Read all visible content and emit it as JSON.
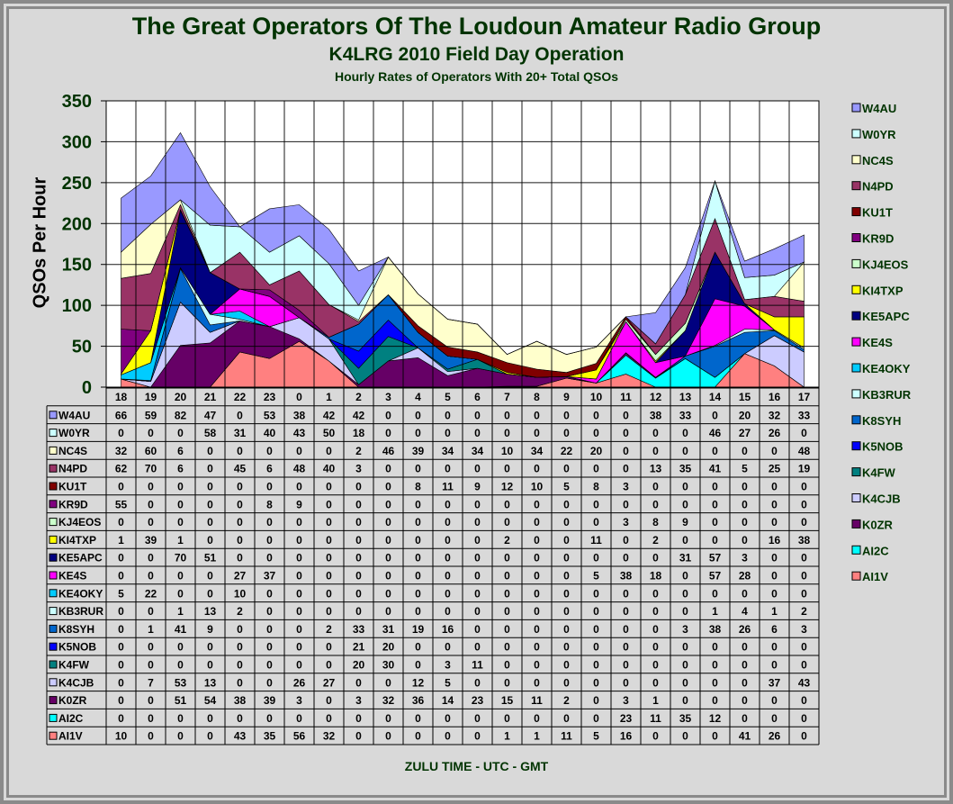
{
  "chart_data": {
    "type": "area",
    "stacked": true,
    "title": "The Great Operators Of The Loudoun Amateur Radio Group",
    "subtitle": "K4LRG 2010 Field Day Operation",
    "subtitle2": "Hourly Rates of Operators With 20+ Total QSOs",
    "xlabel": "ZULU TIME  -  UTC  -  GMT",
    "ylabel": "QSOs Per Hour",
    "ylim": [
      0,
      350
    ],
    "yticks": [
      0,
      50,
      100,
      150,
      200,
      250,
      300,
      350
    ],
    "grid": true,
    "legend": "right",
    "categories": [
      "18",
      "19",
      "20",
      "21",
      "22",
      "23",
      "0",
      "1",
      "2",
      "3",
      "4",
      "5",
      "6",
      "7",
      "8",
      "9",
      "10",
      "11",
      "12",
      "13",
      "14",
      "15",
      "16",
      "17"
    ],
    "series": [
      {
        "name": "W4AU",
        "color": "#9999FF",
        "values": [
          66,
          59,
          82,
          47,
          0,
          53,
          38,
          42,
          42,
          0,
          0,
          0,
          0,
          0,
          0,
          0,
          0,
          0,
          38,
          33,
          0,
          20,
          32,
          33
        ]
      },
      {
        "name": "W0YR",
        "color": "#CCFFFF",
        "values": [
          0,
          0,
          0,
          58,
          31,
          40,
          43,
          50,
          18,
          0,
          0,
          0,
          0,
          0,
          0,
          0,
          0,
          0,
          0,
          0,
          46,
          27,
          26,
          0
        ]
      },
      {
        "name": "NC4S",
        "color": "#FFFFCC",
        "values": [
          32,
          60,
          6,
          0,
          0,
          0,
          0,
          0,
          2,
          46,
          39,
          34,
          34,
          10,
          34,
          22,
          20,
          0,
          0,
          0,
          0,
          0,
          0,
          48
        ]
      },
      {
        "name": "N4PD",
        "color": "#993366",
        "values": [
          62,
          70,
          6,
          0,
          45,
          6,
          48,
          40,
          3,
          0,
          0,
          0,
          0,
          0,
          0,
          0,
          0,
          0,
          13,
          35,
          41,
          5,
          25,
          19
        ]
      },
      {
        "name": "KU1T",
        "color": "#800000",
        "values": [
          0,
          0,
          0,
          0,
          0,
          0,
          0,
          0,
          0,
          0,
          8,
          11,
          9,
          12,
          10,
          5,
          8,
          3,
          0,
          0,
          0,
          0,
          0,
          0
        ]
      },
      {
        "name": "KR9D",
        "color": "#800080",
        "values": [
          55,
          0,
          0,
          0,
          0,
          8,
          9,
          0,
          0,
          0,
          0,
          0,
          0,
          0,
          0,
          0,
          0,
          0,
          0,
          0,
          0,
          0,
          0,
          0
        ]
      },
      {
        "name": "KJ4EOS",
        "color": "#CCFFCC",
        "values": [
          0,
          0,
          0,
          0,
          0,
          0,
          0,
          0,
          0,
          0,
          0,
          0,
          0,
          0,
          0,
          0,
          0,
          3,
          8,
          9,
          0,
          0,
          0,
          0
        ]
      },
      {
        "name": "KI4TXP",
        "color": "#FFFF00",
        "values": [
          1,
          39,
          1,
          0,
          0,
          0,
          0,
          0,
          0,
          0,
          0,
          0,
          0,
          2,
          0,
          0,
          11,
          0,
          2,
          0,
          0,
          0,
          16,
          38
        ]
      },
      {
        "name": "KE5APC",
        "color": "#000080",
        "values": [
          0,
          0,
          70,
          51,
          0,
          0,
          0,
          0,
          0,
          0,
          0,
          0,
          0,
          0,
          0,
          0,
          0,
          0,
          0,
          31,
          57,
          3,
          0,
          0
        ]
      },
      {
        "name": "KE4S",
        "color": "#FF00FF",
        "values": [
          0,
          0,
          0,
          0,
          27,
          37,
          0,
          0,
          0,
          0,
          0,
          0,
          0,
          0,
          0,
          0,
          5,
          38,
          18,
          0,
          57,
          28,
          0,
          0
        ]
      },
      {
        "name": "KE4OKY",
        "color": "#00CCFF",
        "values": [
          5,
          22,
          0,
          0,
          10,
          0,
          0,
          0,
          0,
          0,
          0,
          0,
          0,
          0,
          0,
          0,
          0,
          0,
          0,
          0,
          0,
          0,
          0,
          0
        ]
      },
      {
        "name": "KB3RUR",
        "color": "#CCFFFF",
        "values": [
          0,
          0,
          1,
          13,
          2,
          0,
          0,
          0,
          0,
          0,
          0,
          0,
          0,
          0,
          0,
          0,
          0,
          0,
          0,
          0,
          1,
          4,
          1,
          2
        ]
      },
      {
        "name": "K8SYH",
        "color": "#0066CC",
        "values": [
          0,
          1,
          41,
          9,
          0,
          0,
          0,
          2,
          33,
          31,
          19,
          16,
          0,
          0,
          0,
          0,
          0,
          0,
          0,
          3,
          38,
          26,
          6,
          3
        ]
      },
      {
        "name": "K5NOB",
        "color": "#0000FF",
        "values": [
          0,
          0,
          0,
          0,
          0,
          0,
          0,
          0,
          21,
          20,
          0,
          0,
          0,
          0,
          0,
          0,
          0,
          0,
          0,
          0,
          0,
          0,
          0,
          0
        ]
      },
      {
        "name": "K4FW",
        "color": "#008080",
        "values": [
          0,
          0,
          0,
          0,
          0,
          0,
          0,
          0,
          20,
          30,
          0,
          3,
          11,
          0,
          0,
          0,
          0,
          0,
          0,
          0,
          0,
          0,
          0,
          0
        ]
      },
      {
        "name": "K4CJB",
        "color": "#CCCCFF",
        "values": [
          0,
          7,
          53,
          13,
          0,
          0,
          26,
          27,
          0,
          0,
          12,
          5,
          0,
          0,
          0,
          0,
          0,
          0,
          0,
          0,
          0,
          0,
          37,
          43
        ]
      },
      {
        "name": "K0ZR",
        "color": "#660066",
        "values": [
          0,
          0,
          51,
          54,
          38,
          39,
          3,
          0,
          3,
          32,
          36,
          14,
          23,
          15,
          11,
          2,
          0,
          3,
          1,
          0,
          0,
          0,
          0,
          0
        ]
      },
      {
        "name": "AI2C",
        "color": "#00FFFF",
        "values": [
          0,
          0,
          0,
          0,
          0,
          0,
          0,
          0,
          0,
          0,
          0,
          0,
          0,
          0,
          0,
          0,
          0,
          23,
          11,
          35,
          12,
          0,
          0,
          0
        ]
      },
      {
        "name": "AI1V",
        "color": "#FF8080",
        "values": [
          10,
          0,
          0,
          0,
          43,
          35,
          56,
          32,
          0,
          0,
          0,
          0,
          0,
          1,
          1,
          11,
          5,
          16,
          0,
          0,
          0,
          41,
          26,
          0
        ]
      }
    ]
  }
}
